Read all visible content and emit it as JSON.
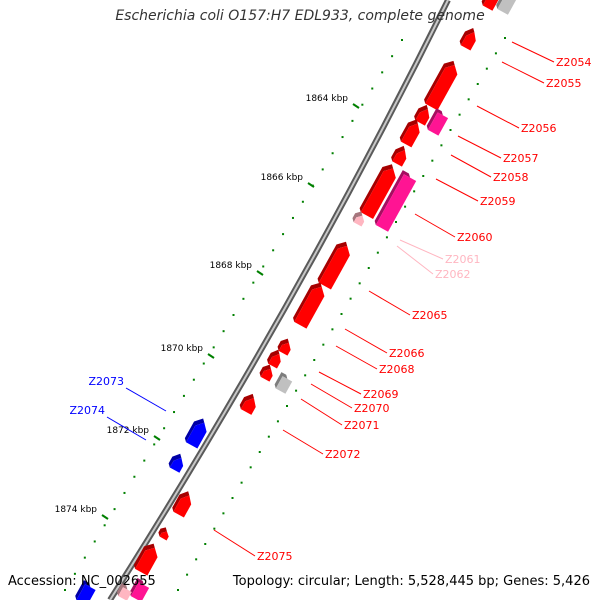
{
  "title": "Escherichia coli O157:H7 EDL933, complete genome",
  "footer": {
    "accession": "Accession: NC_002655",
    "summary": "Topology: circular; Length: 5,528,445 bp; Genes: 5,426"
  },
  "colors": {
    "forward_gene": "#ff0000",
    "reverse_gene": "#0000ff",
    "pseudo_gene": "#ff1493",
    "rna_gene": "#ffb6c1",
    "other_gene": "#c0c0c0",
    "backbone": "#808080",
    "tick": "#008000"
  },
  "ticks": [
    "1864 kbp",
    "1866 kbp",
    "1868 kbp",
    "1870 kbp",
    "1872 kbp",
    "1874 kbp"
  ],
  "genes": [
    {
      "label": "Z2054",
      "color": "#ff0000"
    },
    {
      "label": "Z2055",
      "color": "#ff0000"
    },
    {
      "label": "Z2056",
      "color": "#ff0000"
    },
    {
      "label": "Z2057",
      "color": "#ff0000"
    },
    {
      "label": "Z2058",
      "color": "#ff0000"
    },
    {
      "label": "Z2059",
      "color": "#ff0000"
    },
    {
      "label": "Z2060",
      "color": "#ff0000"
    },
    {
      "label": "Z2061",
      "color": "#ffb6c1"
    },
    {
      "label": "Z2062",
      "color": "#ffb6c1"
    },
    {
      "label": "Z2065",
      "color": "#ff0000"
    },
    {
      "label": "Z2066",
      "color": "#ff0000"
    },
    {
      "label": "Z2068",
      "color": "#ff0000"
    },
    {
      "label": "Z2069",
      "color": "#ff0000"
    },
    {
      "label": "Z2070",
      "color": "#ff0000"
    },
    {
      "label": "Z2071",
      "color": "#ff0000"
    },
    {
      "label": "Z2072",
      "color": "#ff0000"
    },
    {
      "label": "Z2073",
      "color": "#0000ff"
    },
    {
      "label": "Z2074",
      "color": "#0000ff"
    },
    {
      "label": "Z2075",
      "color": "#ff0000"
    }
  ]
}
